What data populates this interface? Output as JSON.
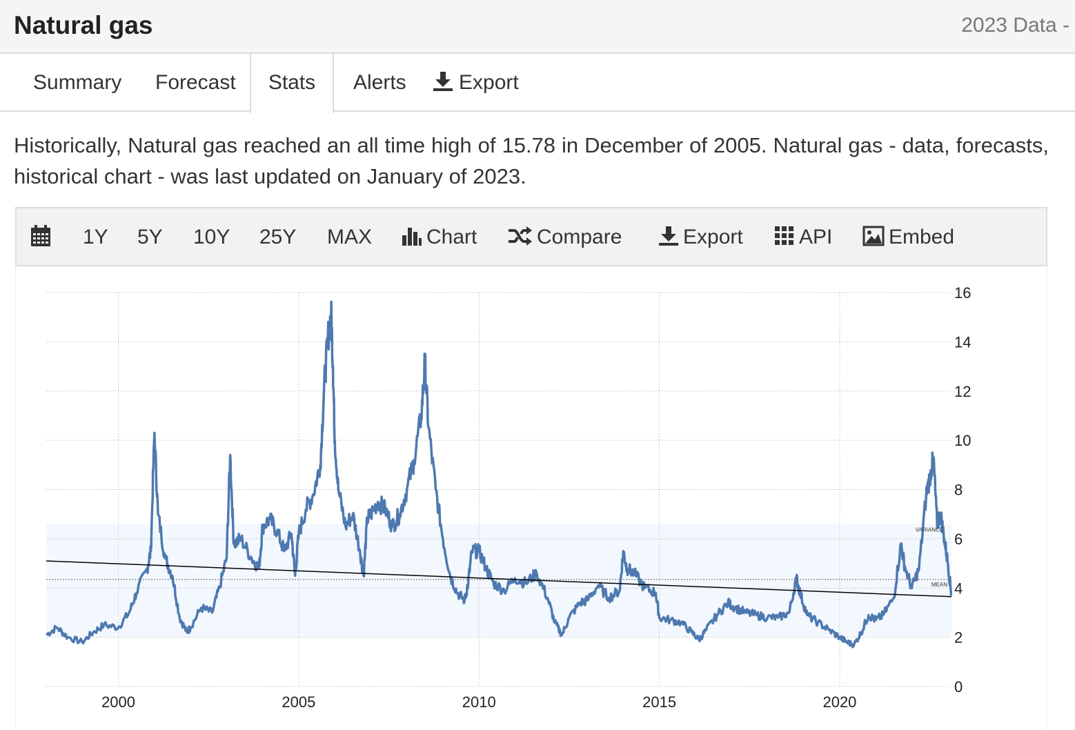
{
  "header": {
    "title": "Natural gas",
    "data_label": "2023 Data -"
  },
  "tabs": [
    {
      "label": "Summary"
    },
    {
      "label": "Forecast"
    },
    {
      "label": "Stats"
    },
    {
      "label": "Alerts"
    },
    {
      "label": "Export"
    }
  ],
  "description": "Historically, Natural gas reached an all time high of 15.78 in December of 2005. Natural gas - data, forecasts, historical chart - was last updated on January of 2023.",
  "toolbar": {
    "periods": [
      "1Y",
      "5Y",
      "10Y",
      "25Y",
      "MAX"
    ],
    "chart_label": "Chart",
    "compare_label": "Compare",
    "export_label": "Export",
    "api_label": "API",
    "embed_label": "Embed"
  },
  "colors": {
    "series": "#4e79b0",
    "band": "#f3f8fe",
    "trend": "#000000",
    "grid": "#cccccc"
  },
  "chart_data": {
    "type": "line",
    "title": "",
    "xlabel": "",
    "ylabel": "",
    "xlim": [
      1998.0,
      2023.1
    ],
    "ylim": [
      0,
      16
    ],
    "yticks": [
      0,
      2,
      4,
      6,
      8,
      10,
      12,
      14,
      16
    ],
    "xticks": [
      2000,
      2005,
      2010,
      2015,
      2020
    ],
    "grid": true,
    "variance_band": [
      2.0,
      6.6
    ],
    "variance_label": "VARIANCE",
    "mean_value": 4.35,
    "mean_label": "MEAN",
    "trend_line": {
      "start": [
        1998.0,
        5.1
      ],
      "end": [
        2023.1,
        3.65
      ]
    },
    "series": [
      {
        "name": "Natural gas",
        "x": [
          1998.0,
          1998.3,
          1998.6,
          1999.0,
          1999.3,
          1999.6,
          2000.0,
          2000.3,
          2000.5,
          2000.8,
          2000.9,
          2001.0,
          2001.1,
          2001.3,
          2001.5,
          2001.7,
          2001.9,
          2002.0,
          2002.3,
          2002.6,
          2002.8,
          2003.0,
          2003.1,
          2003.2,
          2003.4,
          2003.7,
          2003.9,
          2004.0,
          2004.2,
          2004.4,
          2004.6,
          2004.8,
          2004.9,
          2005.0,
          2005.2,
          2005.4,
          2005.6,
          2005.7,
          2005.8,
          2005.9,
          2005.95,
          2006.0,
          2006.1,
          2006.3,
          2006.5,
          2006.7,
          2006.8,
          2006.9,
          2007.0,
          2007.2,
          2007.4,
          2007.6,
          2007.8,
          2008.0,
          2008.2,
          2008.4,
          2008.5,
          2008.6,
          2008.8,
          2009.0,
          2009.2,
          2009.4,
          2009.6,
          2009.7,
          2009.8,
          2010.0,
          2010.2,
          2010.4,
          2010.7,
          2011.0,
          2011.3,
          2011.6,
          2011.9,
          2012.1,
          2012.3,
          2012.5,
          2012.8,
          2013.0,
          2013.3,
          2013.6,
          2013.9,
          2014.0,
          2014.1,
          2014.3,
          2014.6,
          2014.9,
          2015.0,
          2015.3,
          2015.6,
          2015.9,
          2016.1,
          2016.3,
          2016.6,
          2016.9,
          2017.1,
          2017.4,
          2017.7,
          2018.0,
          2018.3,
          2018.6,
          2018.8,
          2018.9,
          2019.1,
          2019.4,
          2019.7,
          2020.0,
          2020.2,
          2020.4,
          2020.6,
          2020.8,
          2021.0,
          2021.2,
          2021.5,
          2021.7,
          2021.8,
          2022.0,
          2022.2,
          2022.4,
          2022.5,
          2022.6,
          2022.7,
          2022.8,
          2022.9,
          2023.0,
          2023.1
        ],
        "y": [
          2.1,
          2.4,
          2.0,
          1.8,
          2.2,
          2.5,
          2.4,
          3.0,
          3.8,
          4.8,
          5.5,
          10.3,
          7.0,
          5.2,
          4.5,
          2.8,
          2.2,
          2.4,
          3.2,
          3.0,
          4.0,
          5.2,
          9.4,
          5.8,
          6.0,
          5.2,
          4.8,
          6.5,
          6.8,
          6.3,
          5.5,
          6.2,
          4.5,
          6.2,
          7.2,
          7.8,
          9.0,
          12.0,
          14.0,
          15.2,
          13.0,
          10.0,
          8.0,
          6.5,
          7.0,
          5.5,
          4.5,
          6.8,
          7.0,
          7.5,
          7.2,
          6.5,
          7.0,
          8.0,
          9.2,
          11.0,
          13.2,
          10.5,
          8.0,
          6.0,
          4.5,
          3.8,
          3.5,
          4.2,
          5.5,
          5.5,
          4.8,
          4.2,
          3.9,
          4.4,
          4.2,
          4.6,
          3.6,
          2.6,
          2.1,
          2.8,
          3.4,
          3.5,
          4.1,
          3.6,
          3.9,
          5.5,
          4.8,
          4.6,
          4.0,
          3.8,
          2.8,
          2.7,
          2.6,
          2.2,
          1.9,
          2.3,
          2.9,
          3.4,
          3.2,
          3.0,
          2.9,
          2.8,
          2.8,
          3.0,
          4.4,
          3.8,
          2.9,
          2.6,
          2.3,
          2.0,
          1.8,
          1.7,
          2.2,
          2.9,
          2.7,
          2.9,
          3.6,
          5.8,
          4.9,
          4.0,
          4.8,
          7.8,
          8.5,
          9.3,
          6.6,
          7.0,
          6.0,
          5.0,
          3.7
        ]
      }
    ]
  }
}
